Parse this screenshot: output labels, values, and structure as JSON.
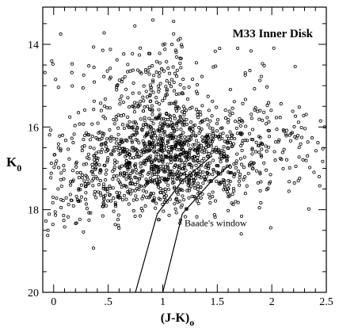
{
  "chart_data": {
    "type": "scatter",
    "title": "M33 Inner Disk",
    "xlabel_main": "(J-K)",
    "xlabel_sub": "o",
    "ylabel_main": "K",
    "ylabel_sub": "0",
    "xlim": [
      -0.1,
      2.5
    ],
    "ylim": [
      20,
      13.1
    ],
    "x_ticks": [
      {
        "value": 0,
        "label": "0"
      },
      {
        "value": 0.5,
        "label": ".5"
      },
      {
        "value": 1,
        "label": "1"
      },
      {
        "value": 1.5,
        "label": "1.5"
      },
      {
        "value": 2,
        "label": "2"
      },
      {
        "value": 2.5,
        "label": "2.5"
      }
    ],
    "y_ticks": [
      {
        "value": 14,
        "label": "14"
      },
      {
        "value": 16,
        "label": "16"
      },
      {
        "value": 18,
        "label": "18"
      },
      {
        "value": 20,
        "label": "20"
      }
    ],
    "annotation": {
      "text": "Baade's window",
      "x": 1.2,
      "y": 18.4
    },
    "lines": [
      {
        "name": "baade-left",
        "points": [
          [
            0.75,
            20.0
          ],
          [
            0.95,
            18.1
          ],
          [
            1.18,
            17.3
          ],
          [
            1.45,
            16.7
          ]
        ]
      },
      {
        "name": "baade-right",
        "points": [
          [
            1.0,
            20.0
          ],
          [
            1.18,
            18.1
          ],
          [
            1.45,
            17.3
          ],
          [
            1.62,
            16.9
          ]
        ]
      }
    ],
    "clusters": [
      {
        "cx": 1.05,
        "cy": 16.75,
        "sx": 0.36,
        "sy": 0.55,
        "n": 620
      },
      {
        "cx": 0.95,
        "cy": 15.6,
        "sx": 0.22,
        "sy": 0.75,
        "n": 230
      },
      {
        "cx": 0.95,
        "cy": 17.4,
        "sx": 0.45,
        "sy": 0.45,
        "n": 240
      },
      {
        "cx": 1.55,
        "cy": 16.4,
        "sx": 0.45,
        "sy": 0.55,
        "n": 200
      },
      {
        "cx": 0.45,
        "cy": 17.1,
        "sx": 0.35,
        "sy": 0.6,
        "n": 150
      },
      {
        "cx": 2.05,
        "cy": 16.4,
        "sx": 0.3,
        "sy": 0.5,
        "n": 70
      },
      {
        "cx": 0.45,
        "cy": 15.0,
        "sx": 0.45,
        "sy": 0.9,
        "n": 55
      },
      {
        "cx": 1.4,
        "cy": 14.6,
        "sx": 0.6,
        "sy": 0.7,
        "n": 45
      },
      {
        "cx": 0.1,
        "cy": 17.8,
        "sx": 0.2,
        "sy": 0.5,
        "n": 30
      }
    ],
    "point_radius_data_units": 0.012,
    "seed": 33
  }
}
